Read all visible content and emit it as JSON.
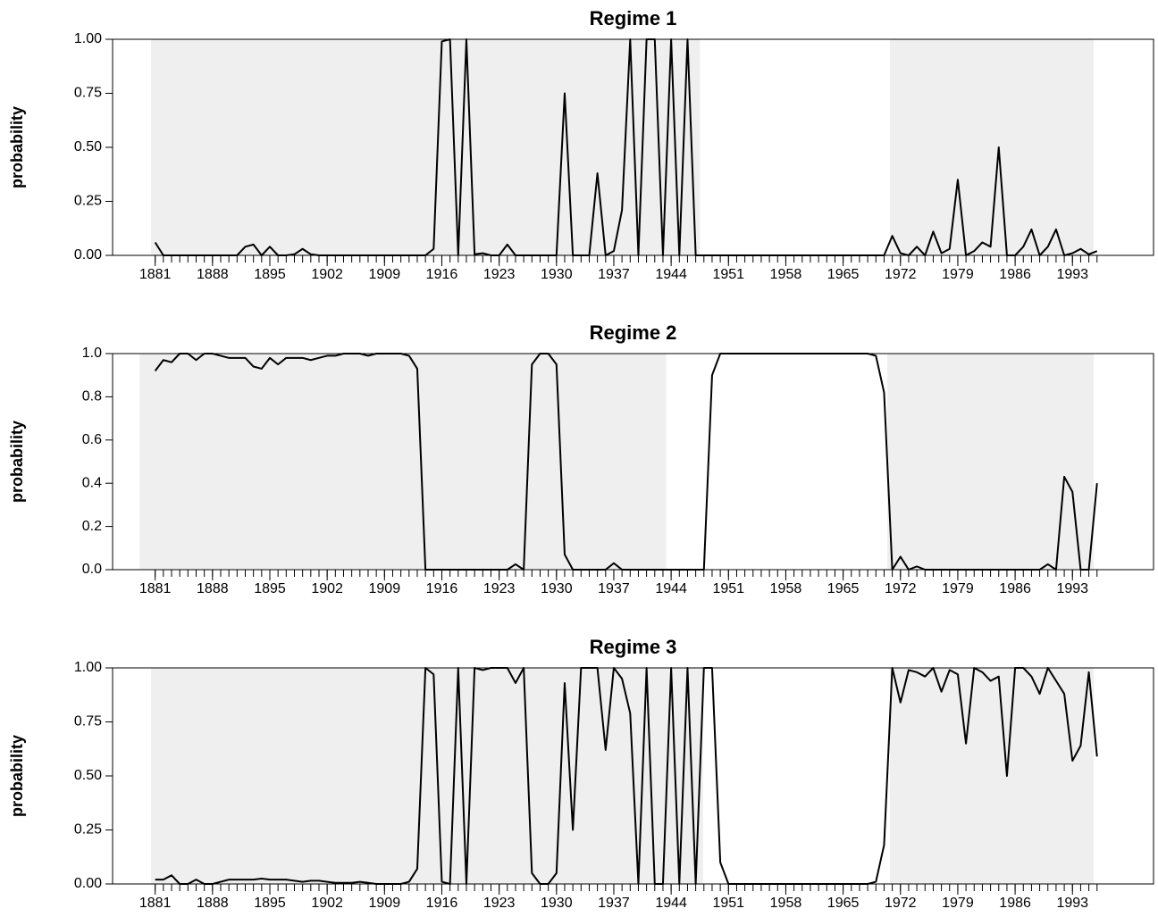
{
  "chart_data": [
    {
      "type": "line",
      "title": "Regime 1",
      "ylabel": "probability",
      "color": "#000000",
      "shade_color": "#efefef",
      "grid": false,
      "x": [
        1881,
        1882,
        1883,
        1884,
        1885,
        1886,
        1887,
        1888,
        1889,
        1890,
        1891,
        1892,
        1893,
        1894,
        1895,
        1896,
        1897,
        1898,
        1899,
        1900,
        1901,
        1902,
        1903,
        1904,
        1905,
        1906,
        1907,
        1908,
        1909,
        1910,
        1911,
        1912,
        1913,
        1914,
        1915,
        1916,
        1917,
        1918,
        1919,
        1920,
        1921,
        1922,
        1923,
        1924,
        1925,
        1926,
        1927,
        1928,
        1929,
        1930,
        1931,
        1932,
        1933,
        1934,
        1935,
        1936,
        1937,
        1938,
        1939,
        1940,
        1941,
        1942,
        1943,
        1944,
        1945,
        1946,
        1947,
        1948,
        1949,
        1950,
        1951,
        1952,
        1953,
        1954,
        1955,
        1956,
        1957,
        1958,
        1959,
        1960,
        1961,
        1962,
        1963,
        1964,
        1965,
        1966,
        1967,
        1968,
        1969,
        1970,
        1971,
        1972,
        1973,
        1974,
        1975,
        1976,
        1977,
        1978,
        1979,
        1980,
        1981,
        1982,
        1983,
        1984,
        1985,
        1986,
        1987,
        1988,
        1989,
        1990,
        1991,
        1992,
        1993,
        1994,
        1995,
        1996
      ],
      "values": [
        0.06,
        0,
        0,
        0,
        0,
        0,
        0,
        0,
        0,
        0,
        0,
        0.04,
        0.05,
        0,
        0.04,
        0,
        0,
        0.005,
        0.03,
        0.005,
        0,
        0,
        0,
        0,
        0,
        0,
        0,
        0,
        0,
        0,
        0,
        0,
        0,
        0,
        0.03,
        0.99,
        1,
        0,
        1,
        0.005,
        0.01,
        0,
        0,
        0.05,
        0,
        0,
        0,
        0,
        0,
        0,
        0.75,
        0,
        0,
        0,
        0.38,
        0,
        0.02,
        0.21,
        1,
        0,
        1,
        1,
        0,
        1,
        0,
        1,
        0,
        0,
        0,
        0,
        0,
        0,
        0,
        0,
        0,
        0,
        0,
        0,
        0,
        0,
        0,
        0,
        0,
        0,
        0,
        0,
        0,
        0,
        0,
        0,
        0.09,
        0.01,
        0,
        0.04,
        0,
        0.11,
        0.01,
        0.03,
        0.35,
        0,
        0.02,
        0.06,
        0.04,
        0.5,
        0,
        0,
        0.04,
        0.12,
        0,
        0.04,
        0.12,
        0,
        0.01,
        0.03,
        0.005,
        0.02
      ],
      "shaded_regions": [
        [
          1880.5,
          1947.5
        ],
        [
          1970.7,
          1995.6
        ]
      ],
      "xlim": [
        1875.8,
        2002.9
      ],
      "xticks": [
        1881,
        1888,
        1895,
        1902,
        1909,
        1916,
        1923,
        1930,
        1937,
        1944,
        1951,
        1958,
        1965,
        1972,
        1979,
        1986,
        1993
      ],
      "ylim": [
        0,
        1
      ],
      "yticks": [
        {
          "value": 0,
          "label": "0.00"
        },
        0.25,
        {
          "value": 0.5,
          "label": "0.50"
        },
        0.75,
        {
          "value": 1,
          "label": "1.00"
        }
      ]
    },
    {
      "type": "line",
      "title": "Regime 2",
      "ylabel": "probability",
      "color": "#000000",
      "shade_color": "#efefef",
      "grid": false,
      "x": [
        1881,
        1882,
        1883,
        1884,
        1885,
        1886,
        1887,
        1888,
        1889,
        1890,
        1891,
        1892,
        1893,
        1894,
        1895,
        1896,
        1897,
        1898,
        1899,
        1900,
        1901,
        1902,
        1903,
        1904,
        1905,
        1906,
        1907,
        1908,
        1909,
        1910,
        1911,
        1912,
        1913,
        1914,
        1915,
        1916,
        1917,
        1918,
        1919,
        1920,
        1921,
        1922,
        1923,
        1924,
        1925,
        1926,
        1927,
        1928,
        1929,
        1930,
        1931,
        1932,
        1933,
        1934,
        1935,
        1936,
        1937,
        1938,
        1939,
        1940,
        1941,
        1942,
        1943,
        1944,
        1945,
        1946,
        1947,
        1948,
        1949,
        1950,
        1951,
        1952,
        1953,
        1954,
        1955,
        1956,
        1957,
        1958,
        1959,
        1960,
        1961,
        1962,
        1963,
        1964,
        1965,
        1966,
        1967,
        1968,
        1969,
        1970,
        1971,
        1972,
        1973,
        1974,
        1975,
        1976,
        1977,
        1978,
        1979,
        1980,
        1981,
        1982,
        1983,
        1984,
        1985,
        1986,
        1987,
        1988,
        1989,
        1990,
        1991,
        1992,
        1993,
        1994,
        1995,
        1996
      ],
      "values": [
        0.92,
        0.97,
        0.96,
        1,
        1,
        0.97,
        1,
        1,
        0.99,
        0.98,
        0.98,
        0.98,
        0.94,
        0.93,
        0.98,
        0.95,
        0.98,
        0.98,
        0.98,
        0.97,
        0.98,
        0.99,
        0.99,
        1,
        1,
        1,
        0.99,
        1,
        1,
        1,
        1,
        0.99,
        0.93,
        0,
        0,
        0,
        0,
        0,
        0,
        0,
        0,
        0,
        0,
        0,
        0.025,
        0,
        0.95,
        1,
        1,
        0.95,
        0.07,
        0,
        0,
        0,
        0,
        0,
        0.03,
        0,
        0,
        0,
        0,
        0,
        0,
        0,
        0,
        0,
        0,
        0,
        0.9,
        1,
        1,
        1,
        1,
        1,
        1,
        1,
        1,
        1,
        1,
        1,
        1,
        1,
        1,
        1,
        1,
        1,
        1,
        1,
        0.99,
        0.82,
        0,
        0.06,
        0,
        0.015,
        0,
        0,
        0,
        0,
        0,
        0,
        0,
        0,
        0,
        0,
        0,
        0,
        0,
        0,
        0,
        0.025,
        0,
        0.43,
        0.36,
        0,
        0,
        0.4
      ],
      "shaded_regions": [
        [
          1879.1,
          1943.4
        ],
        [
          1970.4,
          1995.6
        ]
      ],
      "xlim": [
        1875.8,
        2002.9
      ],
      "xticks": [
        1881,
        1888,
        1895,
        1902,
        1909,
        1916,
        1923,
        1930,
        1937,
        1944,
        1951,
        1958,
        1965,
        1972,
        1979,
        1986,
        1993
      ],
      "ylim": [
        0,
        1
      ],
      "yticks": [
        {
          "value": 0,
          "label": "0.0"
        },
        0.2,
        0.4,
        0.6,
        0.8,
        {
          "value": 1,
          "label": "1.0"
        }
      ]
    },
    {
      "type": "line",
      "title": "Regime 3",
      "ylabel": "probability",
      "color": "#000000",
      "shade_color": "#efefef",
      "grid": false,
      "x": [
        1881,
        1882,
        1883,
        1884,
        1885,
        1886,
        1887,
        1888,
        1889,
        1890,
        1891,
        1892,
        1893,
        1894,
        1895,
        1896,
        1897,
        1898,
        1899,
        1900,
        1901,
        1902,
        1903,
        1904,
        1905,
        1906,
        1907,
        1908,
        1909,
        1910,
        1911,
        1912,
        1913,
        1914,
        1915,
        1916,
        1917,
        1918,
        1919,
        1920,
        1921,
        1922,
        1923,
        1924,
        1925,
        1926,
        1927,
        1928,
        1929,
        1930,
        1931,
        1932,
        1933,
        1934,
        1935,
        1936,
        1937,
        1938,
        1939,
        1940,
        1941,
        1942,
        1943,
        1944,
        1945,
        1946,
        1947,
        1948,
        1949,
        1950,
        1951,
        1952,
        1953,
        1954,
        1955,
        1956,
        1957,
        1958,
        1959,
        1960,
        1961,
        1962,
        1963,
        1964,
        1965,
        1966,
        1967,
        1968,
        1969,
        1970,
        1971,
        1972,
        1973,
        1974,
        1975,
        1976,
        1977,
        1978,
        1979,
        1980,
        1981,
        1982,
        1983,
        1984,
        1985,
        1986,
        1987,
        1988,
        1989,
        1990,
        1991,
        1992,
        1993,
        1994,
        1995,
        1996
      ],
      "values": [
        0.02,
        0.02,
        0.04,
        0,
        0,
        0.02,
        0,
        0,
        0.01,
        0.02,
        0.02,
        0.02,
        0.02,
        0.025,
        0.02,
        0.02,
        0.02,
        0.015,
        0.01,
        0.015,
        0.015,
        0.01,
        0.005,
        0.005,
        0.005,
        0.01,
        0.005,
        0,
        0,
        0,
        0,
        0.01,
        0.07,
        1,
        0.97,
        0.01,
        0,
        1,
        0,
        1,
        0.99,
        1,
        1,
        1,
        0.93,
        1,
        0.05,
        0,
        0,
        0.05,
        0.93,
        0.25,
        1,
        1,
        1,
        0.62,
        1,
        0.95,
        0.79,
        0,
        1,
        0,
        0,
        1,
        0,
        1,
        0,
        1,
        1,
        0.1,
        0,
        0,
        0,
        0,
        0,
        0,
        0,
        0,
        0,
        0,
        0,
        0,
        0,
        0,
        0,
        0,
        0,
        0,
        0.01,
        0.18,
        1,
        0.84,
        0.99,
        0.98,
        0.96,
        1,
        0.89,
        0.99,
        0.97,
        0.65,
        1,
        0.98,
        0.94,
        0.96,
        0.5,
        1,
        1,
        0.96,
        0.88,
        1,
        0.94,
        0.88,
        0.57,
        0.64,
        0.98,
        0.59
      ],
      "shaded_regions": [
        [
          1880.5,
          1947.9
        ],
        [
          1970.7,
          1995.6
        ]
      ],
      "xlim": [
        1875.8,
        2002.9
      ],
      "xticks": [
        1881,
        1888,
        1895,
        1902,
        1909,
        1916,
        1923,
        1930,
        1937,
        1944,
        1951,
        1958,
        1965,
        1972,
        1979,
        1986,
        1993
      ],
      "ylim": [
        0,
        1
      ],
      "yticks": [
        {
          "value": 0,
          "label": "0.00"
        },
        0.25,
        {
          "value": 0.5,
          "label": "0.50"
        },
        0.75,
        {
          "value": 1,
          "label": "1.00"
        }
      ]
    }
  ]
}
